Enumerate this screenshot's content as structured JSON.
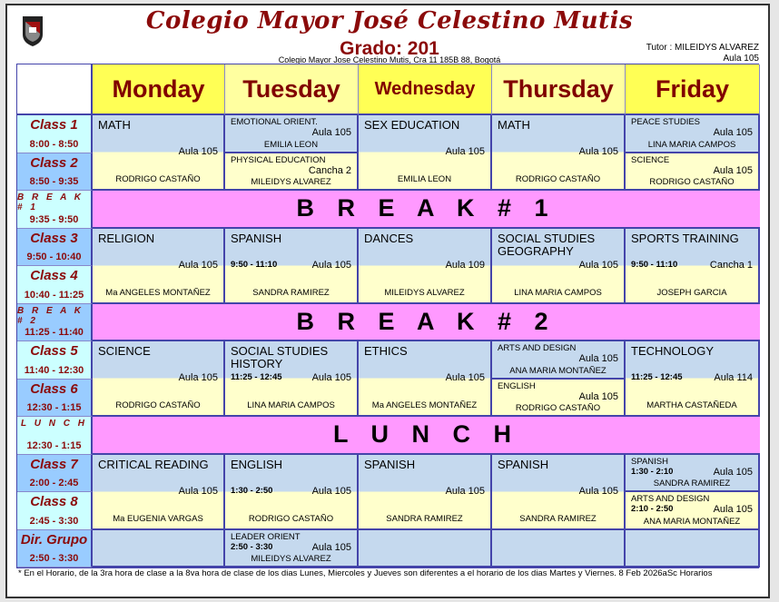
{
  "header": {
    "title": "Colegio Mayor José Celestino Mutis",
    "grade": "Grado: 201",
    "address": "Colegio Mayor Jose Celestino Mutis, Cra 11 185B 88, Bogotá",
    "tutor": "Tutor : MILEIDYS ALVAREZ",
    "room": "Aula 105",
    "logo_icon": "school-crest-icon"
  },
  "colors": {
    "title": "#8b0a0a",
    "break": "#ff99ff",
    "cell_top": "#c5d9ee",
    "cell_bottom": "#ffffcc",
    "day_header": "#ffff55"
  },
  "days": [
    "Monday",
    "Tuesday",
    "Wednesday",
    "Thursday",
    "Friday"
  ],
  "periods": [
    {
      "name": "Class 1",
      "time": "8:00 - 8:50"
    },
    {
      "name": "Class 2",
      "time": "8:50 - 9:35"
    },
    {
      "name": "B R E A K  # 1",
      "time": "9:35 - 9:50",
      "break": "B R E A K  # 1"
    },
    {
      "name": "Class 3",
      "time": "9:50 - 10:40"
    },
    {
      "name": "Class 4",
      "time": "10:40 - 11:25"
    },
    {
      "name": "B R E A K  # 2",
      "time": "11:25 - 11:40",
      "break": "B R E A K  # 2"
    },
    {
      "name": "Class 5",
      "time": "11:40 - 12:30"
    },
    {
      "name": "Class 6",
      "time": "12:30 - 1:15"
    },
    {
      "name": "L U N C H",
      "time": "12:30 - 1:15",
      "break": "L U N C H"
    },
    {
      "name": "Class 7",
      "time": "2:00 - 2:45"
    },
    {
      "name": "Class 8",
      "time": "2:45 - 3:30"
    },
    {
      "name": "Dir. Grupo",
      "time": "2:50 - 3:30"
    }
  ],
  "schedule": [
    [
      {
        "slots": [
          0,
          1
        ],
        "subject": "MATH",
        "room": "Aula 105",
        "teacher": "RODRIGO CASTAÑO"
      },
      {
        "slots": [
          3,
          4
        ],
        "subject": "RELIGION",
        "room": "Aula 105",
        "teacher": "Ma ANGELES MONTAÑEZ"
      },
      {
        "slots": [
          6,
          7
        ],
        "subject": "SCIENCE",
        "room": "Aula 105",
        "teacher": "RODRIGO CASTAÑO"
      },
      {
        "slots": [
          9,
          10
        ],
        "subject": "CRITICAL READING",
        "room": "Aula 105",
        "teacher": "Ma EUGENIA VARGAS"
      },
      {
        "slots": [
          11
        ]
      }
    ],
    [
      {
        "slots": [
          0
        ],
        "subject": "EMOTIONAL ORIENT.",
        "room": "Aula 105",
        "teacher": "EMILIA LEON"
      },
      {
        "slots": [
          1
        ],
        "subject": "PHYSICAL EDUCATION",
        "room": "Cancha 2",
        "teacher": "MILEIDYS ALVAREZ"
      },
      {
        "slots": [
          3,
          4
        ],
        "subject": "SPANISH",
        "time": "9:50 - 11:10",
        "room": "Aula 105",
        "teacher": "SANDRA RAMIREZ"
      },
      {
        "slots": [
          6,
          7
        ],
        "subject": "SOCIAL STUDIES HISTORY",
        "time": "11:25 - 12:45",
        "room": "Aula 105",
        "teacher": "LINA MARIA CAMPOS"
      },
      {
        "slots": [
          9,
          10
        ],
        "subject": "ENGLISH",
        "time": "1:30 - 2:50",
        "room": "Aula 105",
        "teacher": "RODRIGO CASTAÑO"
      },
      {
        "slots": [
          11
        ],
        "subject": "LEADER ORIENT",
        "time": "2:50 - 3:30",
        "room": "Aula 105",
        "teacher": "MILEIDYS ALVAREZ"
      }
    ],
    [
      {
        "slots": [
          0,
          1
        ],
        "subject": "SEX EDUCATION",
        "room": "Aula 105",
        "teacher": "EMILIA LEON"
      },
      {
        "slots": [
          3,
          4
        ],
        "subject": "DANCES",
        "room": "Aula 109",
        "teacher": "MILEIDYS ALVAREZ"
      },
      {
        "slots": [
          6,
          7
        ],
        "subject": "ETHICS",
        "room": "Aula 105",
        "teacher": "Ma ANGELES MONTAÑEZ"
      },
      {
        "slots": [
          9,
          10
        ],
        "subject": "SPANISH",
        "room": "Aula 105",
        "teacher": "SANDRA RAMIREZ"
      },
      {
        "slots": [
          11
        ]
      }
    ],
    [
      {
        "slots": [
          0,
          1
        ],
        "subject": "MATH",
        "room": "Aula 105",
        "teacher": "RODRIGO CASTAÑO"
      },
      {
        "slots": [
          3,
          4
        ],
        "subject": "SOCIAL STUDIES GEOGRAPHY",
        "room": "Aula 105",
        "teacher": "LINA MARIA CAMPOS"
      },
      {
        "slots": [
          6
        ],
        "subject": "ARTS AND DESIGN",
        "room": "Aula 105",
        "teacher": "ANA MARIA MONTAÑEZ"
      },
      {
        "slots": [
          7
        ],
        "subject": "ENGLISH",
        "room": "Aula 105",
        "teacher": "RODRIGO CASTAÑO"
      },
      {
        "slots": [
          9,
          10
        ],
        "subject": "SPANISH",
        "room": "Aula 105",
        "teacher": "SANDRA RAMIREZ"
      },
      {
        "slots": [
          11
        ]
      }
    ],
    [
      {
        "slots": [
          0
        ],
        "subject": "PEACE STUDIES",
        "room": "Aula 105",
        "teacher": "LINA MARIA CAMPOS"
      },
      {
        "slots": [
          1
        ],
        "subject": "SCIENCE",
        "room": "Aula 105",
        "teacher": "RODRIGO CASTAÑO"
      },
      {
        "slots": [
          3,
          4
        ],
        "subject": "SPORTS TRAINING",
        "time": "9:50 - 11:10",
        "room": "Cancha 1",
        "teacher": "JOSEPH GARCIA"
      },
      {
        "slots": [
          6,
          7
        ],
        "subject": "TECHNOLOGY",
        "time": "11:25 - 12:45",
        "room": "Aula 114",
        "teacher": "MARTHA CASTAÑEDA"
      },
      {
        "slots": [
          9
        ],
        "subject": "SPANISH",
        "time": "1:30 - 2:10",
        "room": "Aula 105",
        "teacher": "SANDRA RAMIREZ"
      },
      {
        "slots": [
          10
        ],
        "subject": "ARTS AND DESIGN",
        "time": "2:10 - 2:50",
        "room": "Aula 105",
        "teacher": "ANA MARIA MONTAÑEZ"
      },
      {
        "slots": [
          11
        ]
      }
    ]
  ],
  "footer": "* En el Horario, de la 3ra hora de clase a la 8va hora de clase de los dias Lunes, Miercoles y Jueves son diferentes a el horario de los dias Martes y Viernes.  8 Feb 2026aSc Horarios"
}
